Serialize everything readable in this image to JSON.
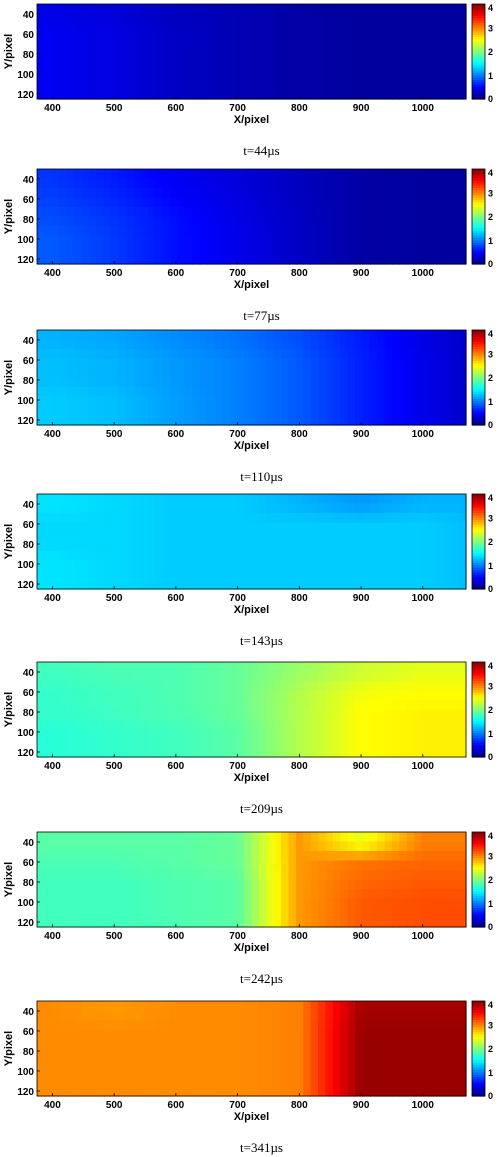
{
  "panel_defaults": {
    "xlabel": "X/pixel",
    "ylabel": "Y/pixel",
    "xticks": [
      "400",
      "500",
      "600",
      "700",
      "800",
      "900",
      "1000"
    ],
    "yticks": [
      "40",
      "60",
      "80",
      "100",
      "120"
    ],
    "colorbar_ticks": [
      "0",
      "1",
      "2",
      "3",
      "4"
    ],
    "xlim": [
      375,
      1070
    ],
    "ylim": [
      30,
      125
    ],
    "clim": [
      0,
      4
    ]
  },
  "chart_data": [
    {
      "type": "heatmap",
      "caption": "t=44µs",
      "xlabel": "X/pixel",
      "ylabel": "Y/pixel",
      "x": [
        400,
        500,
        600,
        700,
        800,
        900,
        1000,
        1070
      ],
      "y": [
        40,
        60,
        80,
        100,
        120
      ],
      "z": [
        [
          0.4,
          0.35,
          0.25,
          0.2,
          0.15,
          0.12,
          0.12,
          0.12
        ],
        [
          0.45,
          0.38,
          0.28,
          0.2,
          0.15,
          0.12,
          0.12,
          0.12
        ],
        [
          0.45,
          0.38,
          0.28,
          0.2,
          0.15,
          0.12,
          0.12,
          0.12
        ],
        [
          0.45,
          0.38,
          0.28,
          0.2,
          0.15,
          0.12,
          0.12,
          0.12
        ],
        [
          0.45,
          0.38,
          0.28,
          0.2,
          0.15,
          0.12,
          0.12,
          0.12
        ]
      ],
      "colorbar": {
        "min": 0,
        "max": 4,
        "ticks": [
          0,
          1,
          2,
          3,
          4
        ]
      }
    },
    {
      "type": "heatmap",
      "caption": "t=77µs",
      "xlabel": "X/pixel",
      "ylabel": "Y/pixel",
      "x": [
        400,
        500,
        600,
        700,
        800,
        900,
        1000,
        1070
      ],
      "y": [
        40,
        60,
        80,
        100,
        120
      ],
      "z": [
        [
          0.7,
          0.6,
          0.45,
          0.35,
          0.25,
          0.15,
          0.12,
          0.12
        ],
        [
          0.75,
          0.65,
          0.5,
          0.38,
          0.25,
          0.15,
          0.12,
          0.12
        ],
        [
          0.8,
          0.7,
          0.55,
          0.4,
          0.27,
          0.15,
          0.12,
          0.12
        ],
        [
          0.85,
          0.72,
          0.55,
          0.42,
          0.27,
          0.15,
          0.12,
          0.12
        ],
        [
          0.85,
          0.72,
          0.55,
          0.42,
          0.27,
          0.15,
          0.12,
          0.12
        ]
      ],
      "colorbar": {
        "min": 0,
        "max": 4,
        "ticks": [
          0,
          1,
          2,
          3,
          4
        ]
      }
    },
    {
      "type": "heatmap",
      "caption": "t=110µs",
      "xlabel": "X/pixel",
      "ylabel": "Y/pixel",
      "x": [
        400,
        500,
        600,
        700,
        800,
        900,
        1000,
        1070
      ],
      "y": [
        40,
        60,
        80,
        100,
        120
      ],
      "z": [
        [
          1.2,
          1.15,
          1.05,
          0.95,
          0.8,
          0.6,
          0.4,
          0.3
        ],
        [
          1.25,
          1.2,
          1.1,
          1.0,
          0.85,
          0.62,
          0.42,
          0.3
        ],
        [
          1.25,
          1.2,
          1.1,
          1.0,
          0.85,
          0.62,
          0.42,
          0.3
        ],
        [
          1.3,
          1.25,
          1.12,
          1.0,
          0.85,
          0.62,
          0.42,
          0.3
        ],
        [
          1.3,
          1.25,
          1.12,
          1.0,
          0.85,
          0.62,
          0.42,
          0.3
        ]
      ],
      "colorbar": {
        "min": 0,
        "max": 4,
        "ticks": [
          0,
          1,
          2,
          3,
          4
        ]
      }
    },
    {
      "type": "heatmap",
      "caption": "t=143µs",
      "xlabel": "X/pixel",
      "ylabel": "Y/pixel",
      "x": [
        400,
        500,
        600,
        700,
        800,
        900,
        1000,
        1070
      ],
      "y": [
        40,
        60,
        80,
        100,
        120
      ],
      "z": [
        [
          1.4,
          1.35,
          1.3,
          1.3,
          1.2,
          1.1,
          1.2,
          1.2
        ],
        [
          1.35,
          1.35,
          1.3,
          1.3,
          1.3,
          1.3,
          1.3,
          1.25
        ],
        [
          1.35,
          1.35,
          1.3,
          1.3,
          1.3,
          1.3,
          1.3,
          1.25
        ],
        [
          1.4,
          1.35,
          1.3,
          1.3,
          1.3,
          1.3,
          1.3,
          1.25
        ],
        [
          1.4,
          1.35,
          1.3,
          1.3,
          1.3,
          1.3,
          1.3,
          1.25
        ]
      ],
      "colorbar": {
        "min": 0,
        "max": 4,
        "ticks": [
          0,
          1,
          2,
          3,
          4
        ]
      }
    },
    {
      "type": "heatmap",
      "caption": "t=209µs",
      "xlabel": "X/pixel",
      "ylabel": "Y/pixel",
      "x": [
        400,
        500,
        600,
        700,
        800,
        900,
        1000,
        1070
      ],
      "y": [
        40,
        60,
        80,
        100,
        120
      ],
      "z": [
        [
          1.75,
          1.8,
          1.8,
          1.9,
          2.1,
          2.3,
          2.4,
          2.4
        ],
        [
          1.7,
          1.75,
          1.8,
          1.9,
          2.2,
          2.45,
          2.5,
          2.5
        ],
        [
          1.7,
          1.75,
          1.8,
          1.9,
          2.2,
          2.5,
          2.55,
          2.55
        ],
        [
          1.65,
          1.7,
          1.75,
          1.85,
          2.2,
          2.5,
          2.55,
          2.55
        ],
        [
          1.65,
          1.7,
          1.75,
          1.85,
          2.2,
          2.5,
          2.55,
          2.55
        ]
      ],
      "colorbar": {
        "min": 0,
        "max": 4,
        "ticks": [
          0,
          1,
          2,
          3,
          4
        ]
      }
    },
    {
      "type": "heatmap",
      "caption": "t=242µs",
      "xlabel": "X/pixel",
      "ylabel": "Y/pixel",
      "x": [
        400,
        500,
        600,
        700,
        800,
        900,
        1000,
        1070
      ],
      "y": [
        40,
        60,
        80,
        100,
        120
      ],
      "z": [
        [
          1.85,
          1.85,
          1.85,
          1.9,
          2.9,
          2.4,
          3.0,
          3.0
        ],
        [
          1.8,
          1.8,
          1.85,
          1.9,
          2.9,
          3.05,
          3.1,
          3.1
        ],
        [
          1.75,
          1.75,
          1.8,
          1.85,
          2.9,
          3.1,
          3.15,
          3.15
        ],
        [
          1.75,
          1.75,
          1.8,
          1.85,
          2.9,
          3.15,
          3.2,
          3.2
        ],
        [
          1.75,
          1.75,
          1.8,
          1.85,
          2.9,
          3.15,
          3.2,
          3.2
        ]
      ],
      "colorbar": {
        "min": 0,
        "max": 4,
        "ticks": [
          0,
          1,
          2,
          3,
          4
        ]
      }
    },
    {
      "type": "heatmap",
      "caption": "t=341µs",
      "xlabel": "X/pixel",
      "ylabel": "Y/pixel",
      "x": [
        400,
        500,
        600,
        700,
        800,
        900,
        1000,
        1070
      ],
      "y": [
        40,
        60,
        80,
        100,
        120
      ],
      "z": [
        [
          2.95,
          2.9,
          2.95,
          2.95,
          3.0,
          3.85,
          3.85,
          3.85
        ],
        [
          2.95,
          2.95,
          2.95,
          2.95,
          3.0,
          3.9,
          3.9,
          3.9
        ],
        [
          2.95,
          2.95,
          2.95,
          2.95,
          3.0,
          3.9,
          3.9,
          3.9
        ],
        [
          2.95,
          2.95,
          2.95,
          2.95,
          3.0,
          3.9,
          3.9,
          3.9
        ],
        [
          2.95,
          2.95,
          2.95,
          2.95,
          3.0,
          3.9,
          3.9,
          3.9
        ]
      ],
      "colorbar": {
        "min": 0,
        "max": 4,
        "ticks": [
          0,
          1,
          2,
          3,
          4
        ]
      }
    }
  ]
}
